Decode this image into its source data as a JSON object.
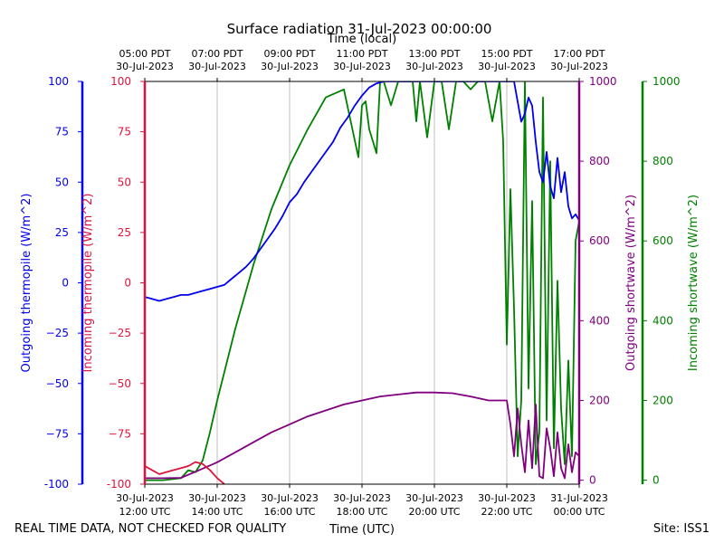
{
  "chart_data": {
    "type": "line",
    "title": "Surface radiation 31-Jul-2023 00:00:00",
    "xlabel_top": "Time (local)",
    "xlabel_bottom": "Time (UTC)",
    "footer_left": "REAL TIME DATA, NOT CHECKED FOR QUALITY",
    "footer_right": "Site: ISS1",
    "x_range_utc_hours": [
      12,
      24
    ],
    "top_ticks": [
      {
        "h": 12,
        "l1": "05:00 PDT",
        "l2": "30-Jul-2023"
      },
      {
        "h": 14,
        "l1": "07:00 PDT",
        "l2": "30-Jul-2023"
      },
      {
        "h": 16,
        "l1": "09:00 PDT",
        "l2": "30-Jul-2023"
      },
      {
        "h": 18,
        "l1": "11:00 PDT",
        "l2": "30-Jul-2023"
      },
      {
        "h": 20,
        "l1": "13:00 PDT",
        "l2": "30-Jul-2023"
      },
      {
        "h": 22,
        "l1": "15:00 PDT",
        "l2": "30-Jul-2023"
      },
      {
        "h": 24,
        "l1": "17:00 PDT",
        "l2": "30-Jul-2023"
      }
    ],
    "bottom_ticks": [
      {
        "h": 12,
        "l1": "30-Jul-2023",
        "l2": "12:00 UTC"
      },
      {
        "h": 14,
        "l1": "30-Jul-2023",
        "l2": "14:00 UTC"
      },
      {
        "h": 16,
        "l1": "30-Jul-2023",
        "l2": "16:00 UTC"
      },
      {
        "h": 18,
        "l1": "30-Jul-2023",
        "l2": "18:00 UTC"
      },
      {
        "h": 20,
        "l1": "30-Jul-2023",
        "l2": "20:00 UTC"
      },
      {
        "h": 22,
        "l1": "30-Jul-2023",
        "l2": "22:00 UTC"
      },
      {
        "h": 24,
        "l1": "31-Jul-2023",
        "l2": "00:00 UTC"
      }
    ],
    "axes": {
      "outgoing_thermopile": {
        "label": "Outgoing thermopile (W/m^2)",
        "color": "#0000ee",
        "range": [
          -100,
          100
        ],
        "ticks": [
          "-100",
          "−75",
          "−50",
          "−25",
          "0",
          "25",
          "50",
          "75",
          "100"
        ]
      },
      "incoming_thermopile": {
        "label": "Incoming thermopile (W/m^2)",
        "color": "#dc143c",
        "range": [
          -100,
          100
        ],
        "ticks": [
          "-100",
          "−75",
          "−50",
          "−25",
          "0",
          "25",
          "50",
          "75",
          "100"
        ]
      },
      "outgoing_shortwave": {
        "label": "Outgoing shortwave (W/m^2)",
        "color": "#800080",
        "range": [
          -10,
          1000
        ],
        "ticks": [
          "0",
          "200",
          "400",
          "600",
          "800",
          "1000"
        ]
      },
      "incoming_shortwave": {
        "label": "Incoming shortwave (W/m^2)",
        "color": "#008000",
        "range": [
          -10,
          1000
        ],
        "ticks": [
          "0",
          "200",
          "400",
          "600",
          "800",
          "1000"
        ]
      }
    },
    "series": [
      {
        "axis": "outgoing_thermopile",
        "x": [
          12,
          12.2,
          12.4,
          12.6,
          12.8,
          13,
          13.2,
          13.4,
          13.6,
          13.8,
          14,
          14.2,
          14.4,
          14.6,
          14.8,
          15,
          15.2,
          15.4,
          15.6,
          15.8,
          16,
          16.2,
          16.4,
          16.6,
          16.8,
          17,
          17.2,
          17.4,
          17.6,
          17.8,
          18,
          18.2,
          18.4,
          18.6,
          18.8,
          19,
          19.2,
          19.4,
          19.6,
          19.8,
          20,
          20.2,
          20.4,
          20.6,
          20.8,
          21,
          21.2,
          21.4,
          21.6,
          21.8,
          22,
          22.1,
          22.2,
          22.3,
          22.4,
          22.5,
          22.6,
          22.7,
          22.8,
          22.9,
          23,
          23.1,
          23.2,
          23.3,
          23.4,
          23.5,
          23.6,
          23.7,
          23.8,
          23.9,
          24
        ],
        "y": [
          -7,
          -8,
          -9,
          -8,
          -7,
          -6,
          -6,
          -5,
          -4,
          -3,
          -2,
          -1,
          2,
          5,
          8,
          12,
          17,
          22,
          27,
          33,
          40,
          44,
          50,
          55,
          60,
          65,
          70,
          77,
          82,
          88,
          93,
          97,
          99,
          100,
          100,
          100,
          100,
          100,
          100,
          100,
          100,
          100,
          100,
          100,
          100,
          100,
          100,
          100,
          100,
          100,
          100,
          100,
          100,
          90,
          80,
          84,
          92,
          88,
          70,
          55,
          50,
          65,
          48,
          42,
          62,
          45,
          55,
          38,
          32,
          34,
          31
        ]
      },
      {
        "axis": "incoming_thermopile",
        "x": [
          12,
          12.2,
          12.4,
          12.6,
          12.8,
          13,
          13.2,
          13.4,
          13.6,
          13.8,
          14,
          14.2
        ],
        "y": [
          -91,
          -93,
          -95,
          -94,
          -93,
          -92,
          -91,
          -89,
          -90,
          -93,
          -97,
          -100
        ]
      },
      {
        "axis": "outgoing_shortwave",
        "x": [
          12,
          12.5,
          13,
          13.5,
          14,
          14.5,
          15,
          15.5,
          16,
          16.5,
          17,
          17.5,
          18,
          18.5,
          19,
          19.5,
          20,
          20.5,
          21,
          21.5,
          22,
          22.1,
          22.2,
          22.3,
          22.4,
          22.5,
          22.6,
          22.7,
          22.8,
          22.9,
          23,
          23.1,
          23.2,
          23.3,
          23.4,
          23.5,
          23.6,
          23.7,
          23.8,
          23.9,
          24
        ],
        "y": [
          5,
          5,
          6,
          25,
          45,
          70,
          95,
          120,
          140,
          160,
          175,
          190,
          200,
          210,
          215,
          220,
          220,
          218,
          210,
          200,
          200,
          140,
          60,
          180,
          90,
          20,
          150,
          30,
          190,
          10,
          5,
          130,
          80,
          10,
          120,
          30,
          5,
          90,
          20,
          70,
          60
        ]
      },
      {
        "axis": "incoming_shortwave",
        "x": [
          12,
          12.5,
          13,
          13.2,
          13.4,
          13.6,
          13.8,
          14,
          14.5,
          15,
          15.5,
          16,
          16.5,
          17,
          17.5,
          17.9,
          18,
          18.1,
          18.2,
          18.4,
          18.5,
          18.6,
          18.8,
          19,
          19.2,
          19.4,
          19.5,
          19.6,
          19.8,
          20,
          20.2,
          20.4,
          20.6,
          20.8,
          21,
          21.2,
          21.4,
          21.6,
          21.8,
          21.9,
          22,
          22.1,
          22.2,
          22.3,
          22.4,
          22.5,
          22.6,
          22.7,
          22.8,
          22.9,
          23,
          23.1,
          23.2,
          23.3,
          23.4,
          23.5,
          23.6,
          23.7,
          23.8,
          23.9,
          24
        ],
        "y": [
          0,
          0,
          5,
          25,
          20,
          50,
          120,
          200,
          380,
          540,
          680,
          790,
          880,
          960,
          980,
          810,
          940,
          950,
          880,
          820,
          1000,
          1000,
          940,
          1000,
          1000,
          1000,
          900,
          1000,
          860,
          1000,
          1000,
          880,
          1000,
          1000,
          980,
          1000,
          1000,
          900,
          1000,
          850,
          340,
          730,
          430,
          60,
          200,
          1000,
          230,
          700,
          40,
          120,
          960,
          150,
          800,
          80,
          500,
          180,
          40,
          300,
          60,
          600,
          650
        ]
      }
    ]
  }
}
